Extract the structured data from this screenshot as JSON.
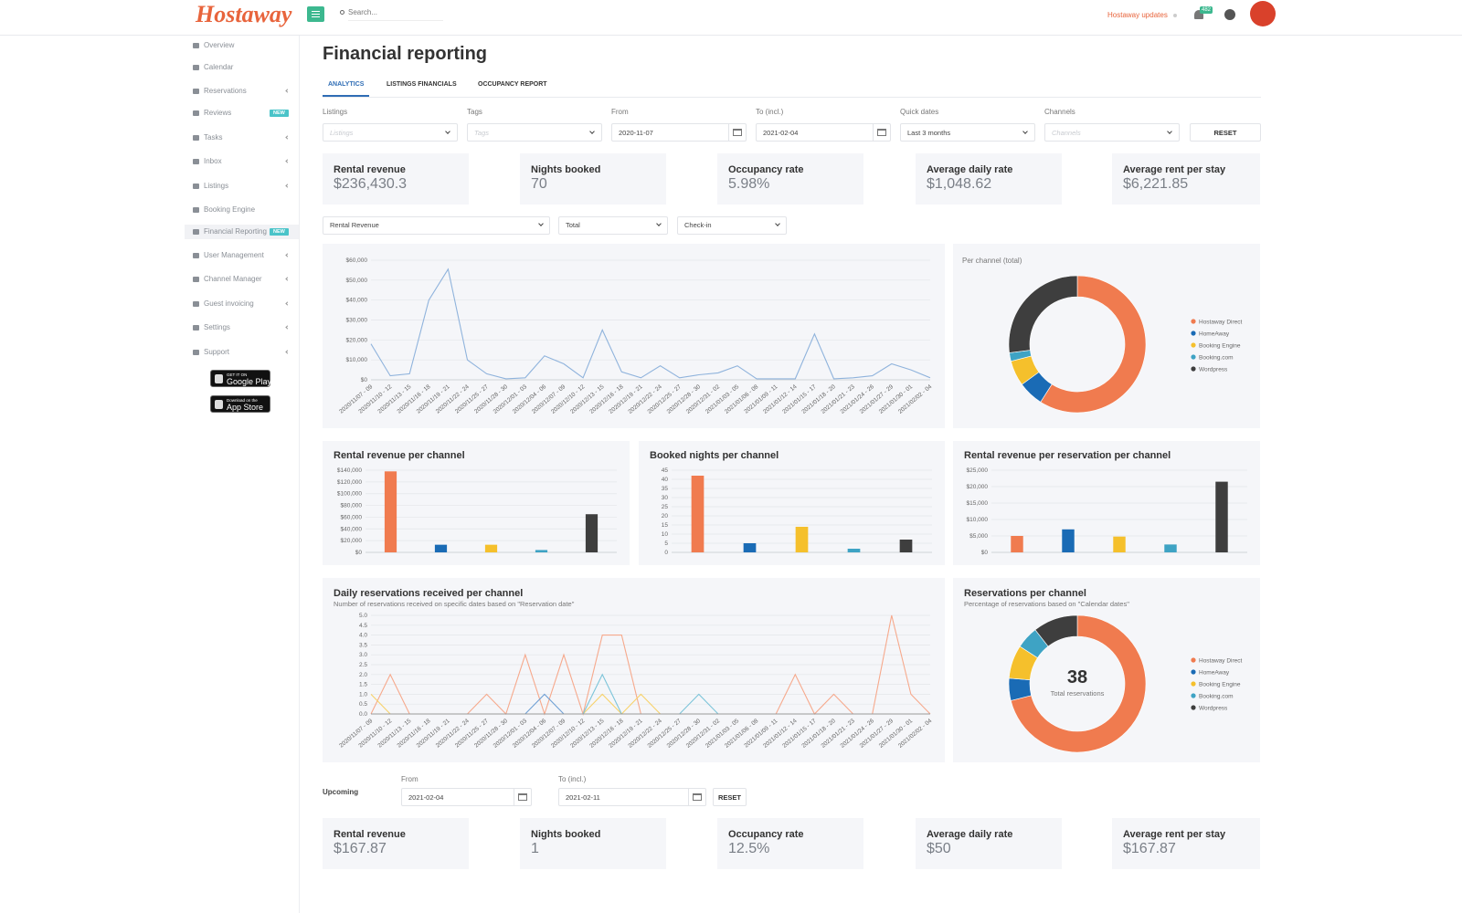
{
  "header": {
    "logo": "Hostaway",
    "search": "Search...",
    "updates": "Hostaway updates",
    "notifications": "482"
  },
  "sidebar": {
    "items": [
      {
        "label": "Overview"
      },
      {
        "label": "Calendar"
      },
      {
        "label": "Reservations",
        "sub": true
      },
      {
        "label": "Reviews",
        "badge": "NEW"
      },
      {
        "label": "Tasks",
        "sub": true
      },
      {
        "label": "Inbox",
        "sub": true
      },
      {
        "label": "Listings",
        "sub": true
      },
      {
        "label": "Booking Engine"
      },
      {
        "label": "Financial Reporting",
        "badge": "NEW",
        "active": true
      },
      {
        "label": "User Management",
        "sub": true
      },
      {
        "label": "Channel Manager",
        "sub": true
      },
      {
        "label": "Guest invoicing",
        "sub": true
      },
      {
        "label": "Settings",
        "sub": true
      },
      {
        "label": "Support",
        "sub": true
      }
    ],
    "google_play": {
      "small": "GET IT ON",
      "big": "Google Play"
    },
    "app_store": {
      "small": "Download on the",
      "big": "App Store"
    }
  },
  "page": {
    "title": "Financial reporting",
    "tabs": [
      "ANALYTICS",
      "LISTINGS FINANCIALS",
      "OCCUPANCY REPORT"
    ]
  },
  "filters": [
    {
      "label": "Listings",
      "placeholder": "Listings"
    },
    {
      "label": "Tags",
      "placeholder": "Tags"
    },
    {
      "label": "From",
      "value": "2020-11-07"
    },
    {
      "label": "To (incl.)",
      "value": "2021-02-04"
    },
    {
      "label": "Quick dates",
      "value": "Last 3 months"
    },
    {
      "label": "Channels",
      "placeholder": "Channels"
    }
  ],
  "reset": "RESET",
  "kpis": [
    {
      "label": "Rental revenue",
      "value": "$236,430.3"
    },
    {
      "label": "Nights booked",
      "value": "70"
    },
    {
      "label": "Occupancy rate",
      "value": "5.98%"
    },
    {
      "label": "Average daily rate",
      "value": "$1,048.62"
    },
    {
      "label": "Average rent per stay",
      "value": "$6,221.85"
    }
  ],
  "selectors": [
    "Rental Revenue",
    "Total",
    "Check-in"
  ],
  "chart_data": [
    {
      "type": "line",
      "categories": [
        "2020/11/07 - 09",
        "2020/11/10 - 12",
        "2020/11/13 - 15",
        "2020/11/16 - 18",
        "2020/11/19 - 21",
        "2020/11/22 - 24",
        "2020/11/25 - 27",
        "2020/11/28 - 30",
        "2020/12/01 - 03",
        "2020/12/04 - 06",
        "2020/12/07 - 09",
        "2020/12/10 - 12",
        "2020/12/13 - 15",
        "2020/12/16 - 18",
        "2020/12/19 - 21",
        "2020/12/22 - 24",
        "2020/12/25 - 27",
        "2020/12/28 - 30",
        "2020/12/31 - 02",
        "2021/01/03 - 05",
        "2021/01/06 - 08",
        "2021/01/09 - 11",
        "2021/01/12 - 14",
        "2021/01/15 - 17",
        "2021/01/18 - 20",
        "2021/01/21 - 23",
        "2021/01/24 - 26",
        "2021/01/27 - 29",
        "2021/01/30 - 01",
        "2021/02/02 - 04"
      ],
      "series": [
        {
          "color": "#8fb3dc",
          "values": [
            18000,
            2000,
            3000,
            40000,
            55500,
            10000,
            3000,
            500,
            1000,
            12000,
            8000,
            1000,
            25000,
            4000,
            1000,
            7000,
            1000,
            2500,
            3500,
            7000,
            500,
            500,
            500,
            23000,
            500,
            1000,
            2000,
            8000,
            5000,
            1000
          ]
        }
      ],
      "ylim": [
        0,
        60000
      ],
      "yticks": [
        {
          "value": 0,
          "label": "$0"
        },
        {
          "value": 10000,
          "label": "$10,000"
        },
        {
          "value": 20000,
          "label": "$20,000"
        },
        {
          "value": 30000,
          "label": "$30,000"
        },
        {
          "value": 40000,
          "label": "$40,000"
        },
        {
          "value": 50000,
          "label": "$50,000"
        },
        {
          "value": 60000,
          "label": "$60,000"
        }
      ],
      "grid": true
    },
    {
      "type": "pie",
      "title": "Per channel (total)",
      "categories": [
        "Hostaway Direct",
        "HomeAway",
        "Booking Engine",
        "Booking.com",
        "Wordpress"
      ],
      "values": [
        59,
        6,
        6,
        2,
        27
      ],
      "colors": [
        "#f07b4f",
        "#1a6bb5",
        "#f5c02c",
        "#3ea3c4",
        "#3e3e3e"
      ]
    },
    {
      "type": "bar",
      "title": "Rental revenue per channel",
      "values": [
        138000,
        13000,
        13000,
        4000,
        65000
      ],
      "colors": [
        "#f07b4f",
        "#1a6bb5",
        "#f5c02c",
        "#3ea3c4",
        "#3e3e3e"
      ],
      "ylim": [
        0,
        140000
      ],
      "yticks": [
        {
          "value": 0,
          "label": "$0"
        },
        {
          "value": 20000,
          "label": "$20,000"
        },
        {
          "value": 40000,
          "label": "$40,000"
        },
        {
          "value": 60000,
          "label": "$60,000"
        },
        {
          "value": 80000,
          "label": "$80,000"
        },
        {
          "value": 100000,
          "label": "$100,000"
        },
        {
          "value": 120000,
          "label": "$120,000"
        },
        {
          "value": 140000,
          "label": "$140,000"
        }
      ],
      "grid": true
    },
    {
      "type": "bar",
      "title": "Booked nights per channel",
      "values": [
        42,
        5,
        14,
        2,
        7
      ],
      "colors": [
        "#f07b4f",
        "#1a6bb5",
        "#f5c02c",
        "#3ea3c4",
        "#3e3e3e"
      ],
      "ylim": [
        0,
        45
      ],
      "yticks": [
        0,
        5,
        10,
        15,
        20,
        25,
        30,
        35,
        40,
        45
      ],
      "grid": true
    },
    {
      "type": "bar",
      "title": "Rental revenue per reservation per channel",
      "values": [
        5000,
        7000,
        4800,
        2400,
        21500
      ],
      "colors": [
        "#f07b4f",
        "#1a6bb5",
        "#f5c02c",
        "#3ea3c4",
        "#3e3e3e"
      ],
      "ylim": [
        0,
        25000
      ],
      "yticks": [
        {
          "value": 0,
          "label": "$0"
        },
        {
          "value": 5000,
          "label": "$5,000"
        },
        {
          "value": 10000,
          "label": "$10,000"
        },
        {
          "value": 15000,
          "label": "$15,000"
        },
        {
          "value": 20000,
          "label": "$20,000"
        },
        {
          "value": 25000,
          "label": "$25,000"
        }
      ],
      "grid": true
    },
    {
      "type": "line",
      "title": "Daily reservations received per channel",
      "subtitle": "Number of reservations received on specific dates based on \"Reservation date\"",
      "categories": [
        "2020/11/07 - 09",
        "2020/11/10 - 12",
        "2020/11/13 - 15",
        "2020/11/16 - 18",
        "2020/11/19 - 21",
        "2020/11/22 - 24",
        "2020/11/25 - 27",
        "2020/11/28 - 30",
        "2020/12/01 - 03",
        "2020/12/04 - 06",
        "2020/12/07 - 09",
        "2020/12/10 - 12",
        "2020/12/13 - 15",
        "2020/12/16 - 18",
        "2020/12/19 - 21",
        "2020/12/22 - 24",
        "2020/12/25 - 27",
        "2020/12/28 - 30",
        "2020/12/31 - 02",
        "2021/01/03 - 05",
        "2021/01/06 - 08",
        "2021/01/09 - 11",
        "2021/01/12 - 14",
        "2021/01/15 - 17",
        "2021/01/18 - 20",
        "2021/01/21 - 23",
        "2021/01/24 - 26",
        "2021/01/27 - 29",
        "2021/01/30 - 01",
        "2021/02/02 - 04"
      ],
      "series": [
        {
          "color": "#f6a98c",
          "values": [
            0,
            2,
            0,
            0,
            0,
            0,
            1,
            0,
            3,
            0,
            3,
            0,
            4,
            4,
            0,
            0,
            0,
            0,
            0,
            0,
            0,
            0,
            2,
            0,
            1,
            0,
            0,
            5,
            1,
            0
          ]
        },
        {
          "color": "#6fa0d4",
          "values": [
            0,
            0,
            0,
            0,
            0,
            0,
            0,
            0,
            0,
            1,
            0,
            0,
            0,
            0,
            0,
            0,
            0,
            0,
            0,
            0,
            0,
            0,
            0,
            0,
            0,
            0,
            0,
            0,
            0,
            0
          ]
        },
        {
          "color": "#f7d26a",
          "values": [
            1,
            0,
            0,
            0,
            0,
            0,
            0,
            0,
            0,
            0,
            0,
            0,
            1,
            0,
            1,
            0,
            0,
            0,
            0,
            0,
            0,
            0,
            0,
            0,
            0,
            0,
            0,
            0,
            0,
            0
          ]
        },
        {
          "color": "#7cc4d9",
          "values": [
            0,
            0,
            0,
            0,
            0,
            0,
            0,
            0,
            0,
            0,
            0,
            0,
            2,
            0,
            0,
            0,
            0,
            1,
            0,
            0,
            0,
            0,
            0,
            0,
            0,
            0,
            0,
            0,
            0,
            0
          ]
        },
        {
          "color": "#999999",
          "values": [
            0,
            0,
            0,
            0,
            0,
            0,
            0,
            0,
            0,
            0,
            0,
            0,
            0,
            0,
            0,
            0,
            0,
            0,
            0,
            0,
            0,
            0,
            0,
            0,
            0,
            0,
            0,
            0,
            0,
            0
          ]
        }
      ],
      "ylim": [
        0,
        5
      ],
      "yticks": [
        {
          "value": 0,
          "label": "0.0"
        },
        {
          "value": 0.5,
          "label": "0.5"
        },
        {
          "value": 1,
          "label": "1.0"
        },
        {
          "value": 1.5,
          "label": "1.5"
        },
        {
          "value": 2,
          "label": "2.0"
        },
        {
          "value": 2.5,
          "label": "2.5"
        },
        {
          "value": 3,
          "label": "3.0"
        },
        {
          "value": 3.5,
          "label": "3.5"
        },
        {
          "value": 4,
          "label": "4.0"
        },
        {
          "value": 4.5,
          "label": "4.5"
        },
        {
          "value": 5,
          "label": "5.0"
        }
      ],
      "grid": true
    },
    {
      "type": "pie",
      "title": "Reservations per channel",
      "subtitle": "Percentage of reservations based on \"Calendar dates\"",
      "center_value": 38,
      "center_label": "Total reservations",
      "categories": [
        "Hostaway Direct",
        "HomeAway",
        "Booking Engine",
        "Booking.com",
        "Wordpress"
      ],
      "values": [
        27,
        2,
        3,
        2,
        4
      ],
      "colors": [
        "#f07b4f",
        "#1a6bb5",
        "#f5c02c",
        "#3ea3c4",
        "#3e3e3e"
      ]
    }
  ],
  "upcoming": {
    "label": "Upcoming",
    "from_label": "From",
    "from": "2021-02-04",
    "to_label": "To (incl.)",
    "to": "2021-02-11",
    "reset": "RESET",
    "kpis": [
      {
        "label": "Rental revenue",
        "value": "$167.87"
      },
      {
        "label": "Nights booked",
        "value": "1"
      },
      {
        "label": "Occupancy rate",
        "value": "12.5%"
      },
      {
        "label": "Average daily rate",
        "value": "$50"
      },
      {
        "label": "Average rent per stay",
        "value": "$167.87"
      }
    ]
  }
}
